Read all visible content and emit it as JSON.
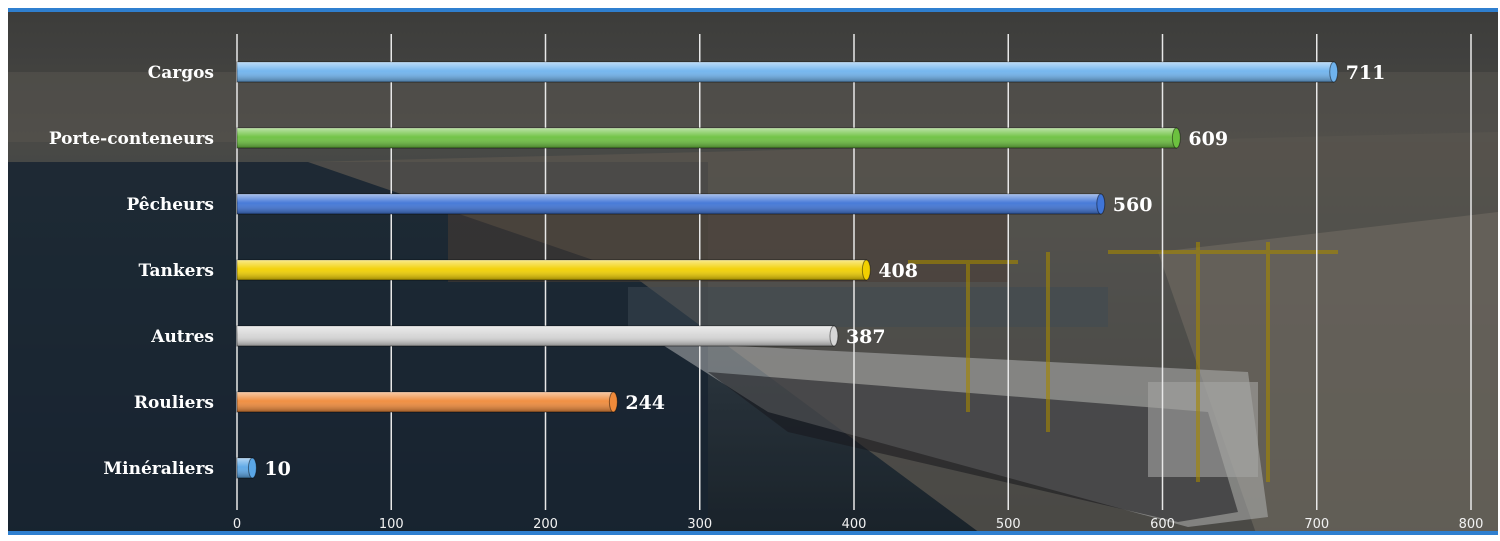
{
  "chart_data": {
    "type": "bar",
    "orientation": "horizontal",
    "categories": [
      "Cargos",
      "Porte-conteneurs",
      "Pêcheurs",
      "Tankers",
      "Autres",
      "Rouliers",
      "Minéraliers"
    ],
    "values": [
      711,
      609,
      560,
      408,
      387,
      244,
      10
    ],
    "data_labels": [
      "711",
      "609",
      "560",
      "408",
      "387",
      "244",
      "10"
    ],
    "colors": [
      "#6fb3ee",
      "#6cc13f",
      "#3f74d6",
      "#f2d000",
      "#d6d6d6",
      "#f08a3a",
      "#5aa6e6"
    ],
    "xlim": [
      0,
      800
    ],
    "x_ticks": [
      0,
      100,
      200,
      300,
      400,
      500,
      600,
      700,
      800
    ],
    "x_tick_labels": [
      "0",
      "100",
      "200",
      "300",
      "400",
      "500",
      "600",
      "700",
      "800"
    ],
    "grid": true,
    "background": "photo of a container port (harbor, cranes, cargo ship)",
    "title": "",
    "xlabel": "",
    "ylabel": ""
  }
}
